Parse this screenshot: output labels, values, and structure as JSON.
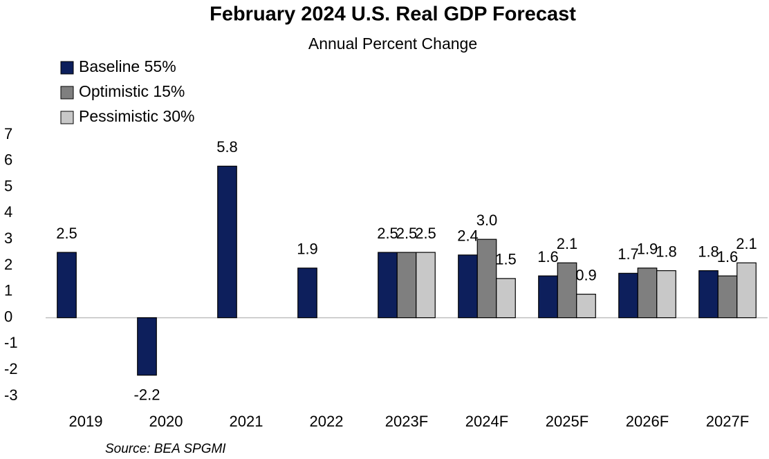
{
  "chart_data": {
    "type": "bar",
    "title": "February 2024 U.S. Real GDP Forecast",
    "subtitle": "Annual Percent Change",
    "source": "Source: BEA SPGMI",
    "categories": [
      "2019",
      "2020",
      "2021",
      "2022",
      "2023F",
      "2024F",
      "2025F",
      "2026F",
      "2027F"
    ],
    "series": [
      {
        "name": "Baseline 55%",
        "color": "#0d1f5c",
        "values": [
          2.5,
          -2.2,
          5.8,
          1.9,
          2.5,
          2.4,
          1.6,
          1.7,
          1.8
        ],
        "value_labels": [
          "2.5",
          "-2.2",
          "5.8",
          "1.9",
          "2.5",
          "2.4",
          "1.6",
          "1.7",
          "1.8"
        ]
      },
      {
        "name": "Optimistic 15%",
        "color": "#7f7f7f",
        "values": [
          null,
          null,
          null,
          null,
          2.5,
          3.0,
          2.1,
          1.9,
          1.6
        ],
        "value_labels": [
          null,
          null,
          null,
          null,
          "2.5",
          "3.0",
          "2.1",
          "1.9",
          "1.6"
        ]
      },
      {
        "name": "Pessimistic 30%",
        "color": "#c8c8c8",
        "values": [
          null,
          null,
          null,
          null,
          2.5,
          1.5,
          0.9,
          1.8,
          2.1
        ],
        "value_labels": [
          null,
          null,
          null,
          null,
          "2.5",
          "1.5",
          "0.9",
          "1.8",
          "2.1"
        ]
      }
    ],
    "ylim": [
      -3,
      7
    ],
    "yticks": [
      -3,
      -2,
      -1,
      0,
      1,
      2,
      3,
      4,
      5,
      6,
      7
    ],
    "grid": false,
    "legend": "top-left"
  }
}
